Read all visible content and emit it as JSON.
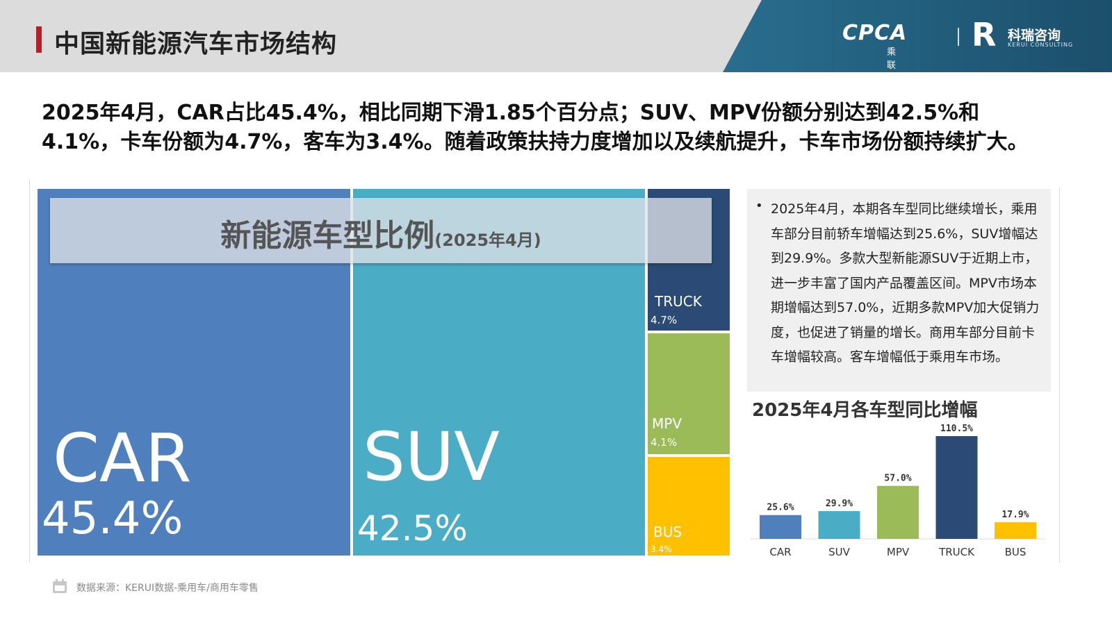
{
  "header": {
    "title": "中国新能源汽车市场结构",
    "logo_cpca_mark": "CPCA",
    "logo_cpca_sub": "乘联分会",
    "logo_kr_mark": "R",
    "logo_kr_name": "科瑞咨询",
    "logo_kr_en": "KERUI CONSULTING"
  },
  "headline": "2025年4月，CAR占比45.4%，相比同期下滑1.85个百分点；SUV、MPV份额分别达到42.5%和4.1%，卡车份额为4.7%，客车为3.4%。随着政策扶持力度增加以及续航提升，卡车市场份额持续扩大。",
  "overlay": {
    "title": "新能源车型比例",
    "paren": "(2025年4月)"
  },
  "notes": {
    "text": "2025年4月，本期各车型同比继续增长，乘用车部分目前轿车增幅达到25.6%，SUV增幅达到29.9%。多款大型新能源SUV于近期上市，进一步丰富了国内产品覆盖区间。MPV市场本期增幅达到57.0%，近期多款MPV加大促销力度，也促进了销量的增长。商用车部分目前卡车增幅较高。客车增幅低于乘用车市场。"
  },
  "source": "数据来源：KERUI数据-乘用车/商用车零售",
  "colors": {
    "car": "#4f80bd",
    "suv": "#4bacc6",
    "mpv": "#9bbb59",
    "truck": "#2b4a75",
    "bus": "#ffc000",
    "accent": "#b52026"
  },
  "chart_data": [
    {
      "type": "treemap",
      "title": "新能源车型比例(2025年4月)",
      "categories": [
        "CAR",
        "SUV",
        "TRUCK",
        "MPV",
        "BUS"
      ],
      "values": [
        45.4,
        42.5,
        4.7,
        4.1,
        3.4
      ],
      "labels": [
        "45.4%",
        "42.5%",
        "4.7%",
        "4.1%",
        "3.4%"
      ]
    },
    {
      "type": "bar",
      "title": "2025年4月各车型同比增幅",
      "categories": [
        "CAR",
        "SUV",
        "MPV",
        "TRUCK",
        "BUS"
      ],
      "values": [
        25.6,
        29.9,
        57.0,
        110.5,
        17.9
      ],
      "labels": [
        "25.6%",
        "29.9%",
        "57.0%",
        "110.5%",
        "17.9%"
      ],
      "colors": [
        "#4f80bd",
        "#4bacc6",
        "#9bbb59",
        "#2b4a75",
        "#ffc000"
      ],
      "ylim": [
        0,
        110.5
      ]
    }
  ]
}
